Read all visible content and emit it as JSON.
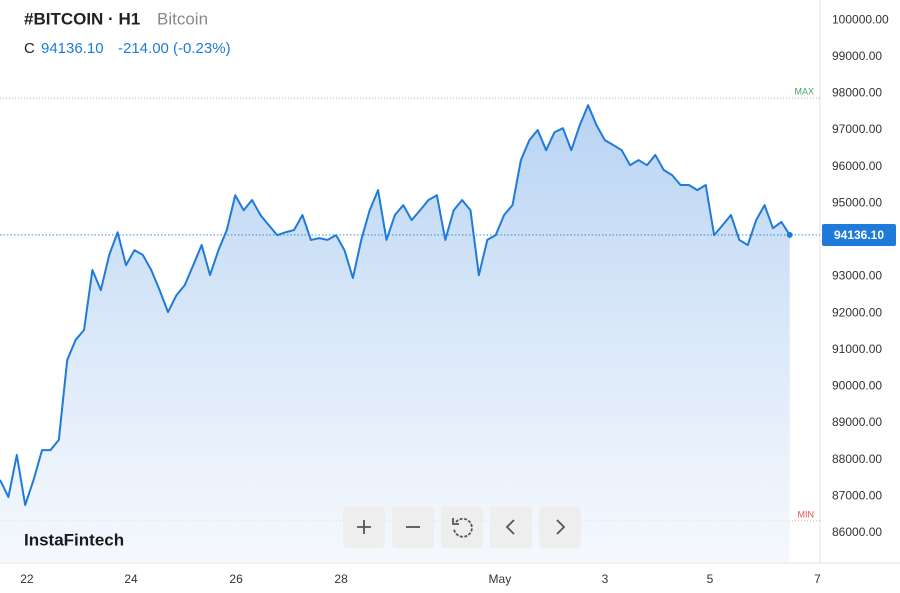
{
  "chart_data": {
    "type": "line",
    "title": "#BITCOIN · H1",
    "subtitle": "Bitcoin",
    "header": {
      "label": "C",
      "close": "94136.10",
      "change": "-214.00 (-0.23%)"
    },
    "watermark": "InstaFintech",
    "color": "#1f7bd9",
    "values": [
      87450,
      86980,
      88130,
      86760,
      87450,
      88260,
      88260,
      88540,
      90720,
      91270,
      91540,
      93180,
      92630,
      93590,
      94210,
      93310,
      93720,
      93590,
      93180,
      92630,
      92030,
      92490,
      92770,
      93310,
      93860,
      93040,
      93720,
      94270,
      95220,
      94810,
      95090,
      94680,
      94400,
      94130,
      94210,
      94270,
      94680,
      94000,
      94050,
      94000,
      94130,
      93720,
      92960,
      94000,
      94810,
      95360,
      94000,
      94680,
      94950,
      94540,
      94810,
      95090,
      95220,
      94000,
      94810,
      95090,
      94810,
      93040,
      94000,
      94130,
      94680,
      94950,
      96180,
      96720,
      97000,
      96450,
      96940,
      97050,
      96450,
      97130,
      97680,
      97130,
      96720,
      96590,
      96450,
      96040,
      96180,
      96040,
      96320,
      95910,
      95770,
      95500,
      95500,
      95360,
      95500,
      94130,
      94400,
      94680,
      94000,
      93860,
      94540,
      94950,
      94320,
      94490,
      94136.1
    ],
    "xlim": [
      0,
      97.6
    ],
    "xticks": [
      {
        "value": 3.2,
        "label": "22"
      },
      {
        "value": 15.6,
        "label": "24"
      },
      {
        "value": 28.1,
        "label": "26"
      },
      {
        "value": 40.6,
        "label": "28"
      },
      {
        "value": 59.5,
        "label": "May"
      },
      {
        "value": 72,
        "label": "3"
      },
      {
        "value": 84.5,
        "label": "5"
      },
      {
        "value": 97.3,
        "label": "7"
      }
    ],
    "ylim": [
      85180,
      100550
    ],
    "yticks": [
      {
        "value": 86000,
        "label": "86000.00"
      },
      {
        "value": 87000,
        "label": "87000.00"
      },
      {
        "value": 88000,
        "label": "88000.00"
      },
      {
        "value": 89000,
        "label": "89000.00"
      },
      {
        "value": 90000,
        "label": "90000.00"
      },
      {
        "value": 91000,
        "label": "91000.00"
      },
      {
        "value": 92000,
        "label": "92000.00"
      },
      {
        "value": 93000,
        "label": "93000.00"
      },
      {
        "value": 94000,
        "label": "94000.00"
      },
      {
        "value": 95000,
        "label": "95000.00"
      },
      {
        "value": 96000,
        "label": "96000.00"
      },
      {
        "value": 97000,
        "label": "97000.00"
      },
      {
        "value": 98000,
        "label": "98000.00"
      },
      {
        "value": 99000,
        "label": "99000.00"
      },
      {
        "value": 100000,
        "label": "100000.00"
      }
    ],
    "reference_lines": [
      {
        "label": "MAX",
        "value": 97870,
        "color": "#3dab5a"
      },
      {
        "label": "MIN",
        "value": 86330,
        "color": "#e05555"
      }
    ]
  }
}
